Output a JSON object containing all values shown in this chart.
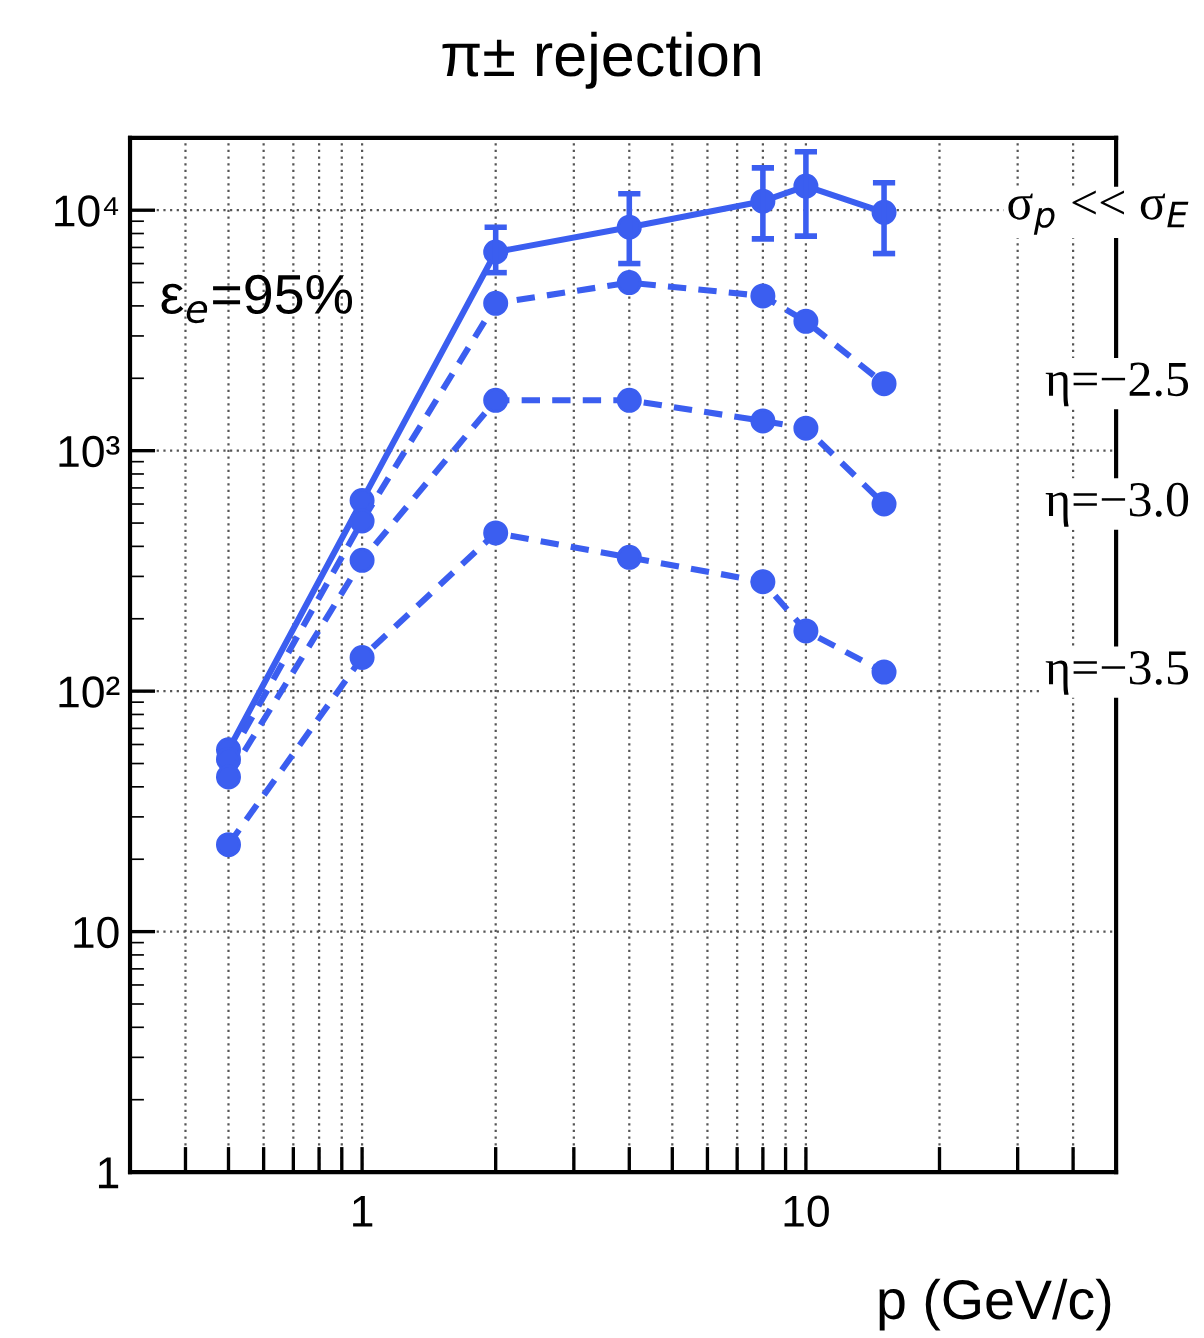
{
  "chart_data": {
    "type": "line",
    "title": "π± rejection",
    "xlabel": "p (GeV/c)",
    "x": [
      0.5,
      1,
      2,
      4,
      8,
      10,
      15
    ],
    "series": [
      {
        "name": "σ$_{p}$ << σ$_{E}$",
        "color": "#3b5ef0",
        "values": [
          57,
          620,
          6700,
          8500,
          10900,
          12600,
          9800
        ],
        "errors": [
          null,
          null,
          [
            5500,
            8500
          ],
          [
            6000,
            11700
          ],
          [
            7600,
            15000
          ],
          [
            7800,
            17500
          ],
          [
            6600,
            13000
          ]
        ],
        "line_style": "solid"
      },
      {
        "name": "η=−2.5",
        "color": "#3b5ef0",
        "values": [
          52,
          510,
          4100,
          5000,
          4400,
          3450,
          1900
        ],
        "line_style": "dashed"
      },
      {
        "name": "η=−3.0",
        "color": "#3b5ef0",
        "values": [
          44,
          350,
          1620,
          1620,
          1330,
          1240,
          600
        ],
        "line_style": "dashed"
      },
      {
        "name": "η=−3.5",
        "color": "#3b5ef0",
        "values": [
          23,
          138,
          455,
          360,
          285,
          178,
          120
        ],
        "line_style": "dashed"
      }
    ],
    "annotations": [
      "ε$_{e}$=95%"
    ],
    "log": "xy",
    "xlim": [
      0.3,
      50
    ],
    "ylim": [
      1,
      20000
    ],
    "xticks": [
      {
        "value": 0.4,
        "label": null
      },
      {
        "value": 0.5,
        "label": null
      },
      {
        "value": 0.6,
        "label": null
      },
      {
        "value": 0.7,
        "label": null
      },
      {
        "value": 0.8,
        "label": null
      },
      {
        "value": 0.9,
        "label": null
      },
      1,
      {
        "value": 2,
        "label": null
      },
      {
        "value": 3,
        "label": null
      },
      {
        "value": 4,
        "label": null
      },
      {
        "value": 5,
        "label": null
      },
      {
        "value": 6,
        "label": null
      },
      {
        "value": 7,
        "label": null
      },
      {
        "value": 8,
        "label": null
      },
      {
        "value": 9,
        "label": null
      },
      10,
      {
        "value": 20,
        "label": null
      },
      {
        "value": 30,
        "label": null
      },
      {
        "value": 40,
        "label": null
      }
    ],
    "yticks": [
      1,
      10,
      {
        "value": 100,
        "label": "10²"
      },
      {
        "value": 1000,
        "label": "10³"
      },
      {
        "value": 10000,
        "label": "10⁴"
      }
    ],
    "grid": true,
    "legend": false,
    "marker": "circle"
  }
}
